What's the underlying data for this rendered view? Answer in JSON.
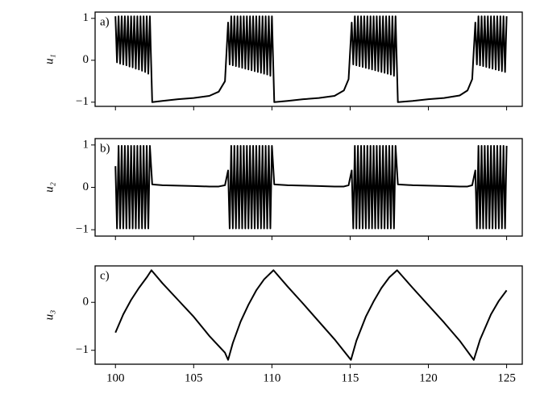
{
  "chart_data": [
    {
      "type": "line",
      "annotation": "a)",
      "ylabel": "u₁",
      "color": "#000000",
      "xlim": [
        98.7,
        126
      ],
      "ylim": [
        -1.1,
        1.15
      ],
      "xticks": [
        100,
        105,
        110,
        115,
        120,
        125
      ],
      "xtick_labels": false,
      "yticks": [
        {
          "value": -1,
          "label": "−1"
        },
        0,
        1
      ],
      "x": [
        100,
        100.1,
        100.2,
        100.3,
        100.4,
        100.5,
        100.6,
        100.7,
        100.8,
        100.9,
        101,
        101.1,
        101.2,
        101.3,
        101.4,
        101.5,
        101.6,
        101.7,
        101.8,
        101.9,
        102,
        102.1,
        102.2,
        102.35,
        103,
        104,
        105,
        106,
        106.6,
        107,
        107.2,
        107.3,
        107.4,
        107.5,
        107.6,
        107.7,
        107.8,
        107.9,
        108,
        108.1,
        108.2,
        108.3,
        108.4,
        108.5,
        108.6,
        108.7,
        108.8,
        108.9,
        109,
        109.1,
        109.2,
        109.3,
        109.4,
        109.5,
        109.6,
        109.7,
        109.8,
        109.9,
        110,
        110.15,
        111,
        112,
        113,
        114,
        114.6,
        114.9,
        115.1,
        115.2,
        115.3,
        115.4,
        115.5,
        115.6,
        115.7,
        115.8,
        115.9,
        116,
        116.1,
        116.2,
        116.3,
        116.4,
        116.5,
        116.6,
        116.7,
        116.8,
        116.9,
        117,
        117.1,
        117.2,
        117.3,
        117.4,
        117.5,
        117.6,
        117.7,
        117.8,
        117.9,
        118.05,
        119,
        120,
        121,
        122,
        122.5,
        122.8,
        123,
        123.1,
        123.2,
        123.3,
        123.4,
        123.5,
        123.6,
        123.7,
        123.8,
        123.9,
        124,
        124.1,
        124.2,
        124.3,
        124.4,
        124.5,
        124.6,
        124.7,
        124.8,
        124.9,
        125
      ],
      "values": [
        1.05,
        -0.05,
        1.05,
        -0.08,
        1.05,
        -0.1,
        1.05,
        -0.12,
        1.05,
        -0.15,
        1.05,
        -0.17,
        1.05,
        -0.2,
        1.05,
        -0.22,
        1.05,
        -0.25,
        1.05,
        -0.28,
        1.05,
        -0.32,
        1.05,
        -1,
        -0.97,
        -0.93,
        -0.9,
        -0.85,
        -0.75,
        -0.5,
        0.9,
        -0.1,
        1.05,
        -0.12,
        1.05,
        -0.14,
        1.05,
        -0.16,
        1.05,
        -0.18,
        1.05,
        -0.2,
        1.05,
        -0.22,
        1.05,
        -0.24,
        1.05,
        -0.26,
        1.05,
        -0.28,
        1.05,
        -0.3,
        1.05,
        -0.32,
        1.05,
        -0.34,
        1.05,
        -0.37,
        1.05,
        -1,
        -0.97,
        -0.93,
        -0.9,
        -0.85,
        -0.72,
        -0.45,
        0.9,
        -0.1,
        1.05,
        -0.12,
        1.05,
        -0.14,
        1.05,
        -0.16,
        1.05,
        -0.18,
        1.05,
        -0.2,
        1.05,
        -0.22,
        1.05,
        -0.24,
        1.05,
        -0.26,
        1.05,
        -0.28,
        1.05,
        -0.3,
        1.05,
        -0.32,
        1.05,
        -0.34,
        1.05,
        -0.37,
        1.05,
        -1,
        -0.97,
        -0.93,
        -0.9,
        -0.84,
        -0.72,
        -0.45,
        0.9,
        -0.1,
        1.05,
        -0.12,
        1.05,
        -0.14,
        1.05,
        -0.16,
        1.05,
        -0.18,
        1.05,
        -0.2,
        1.05,
        -0.22,
        1.05,
        -0.24,
        1.05,
        -0.26,
        1.05,
        -0.28,
        1.05
      ]
    },
    {
      "type": "line",
      "annotation": "b)",
      "ylabel": "u₂",
      "color": "#000000",
      "xlim": [
        98.7,
        126
      ],
      "ylim": [
        -1.15,
        1.15
      ],
      "xticks": [
        100,
        105,
        110,
        115,
        120,
        125
      ],
      "xtick_labels": false,
      "yticks": [
        {
          "value": -1,
          "label": "−1"
        },
        0,
        1
      ],
      "x": [
        100,
        100.1,
        100.2,
        100.3,
        100.4,
        100.5,
        100.6,
        100.7,
        100.8,
        100.9,
        101,
        101.1,
        101.2,
        101.3,
        101.4,
        101.5,
        101.6,
        101.7,
        101.8,
        101.9,
        102,
        102.1,
        102.2,
        102.35,
        103,
        104,
        105,
        106,
        106.6,
        107,
        107.2,
        107.3,
        107.4,
        107.5,
        107.6,
        107.7,
        107.8,
        107.9,
        108,
        108.1,
        108.2,
        108.3,
        108.4,
        108.5,
        108.6,
        108.7,
        108.8,
        108.9,
        109,
        109.1,
        109.2,
        109.3,
        109.4,
        109.5,
        109.6,
        109.7,
        109.8,
        109.9,
        110,
        110.15,
        111,
        112,
        113,
        114,
        114.6,
        114.9,
        115.1,
        115.2,
        115.3,
        115.4,
        115.5,
        115.6,
        115.7,
        115.8,
        115.9,
        116,
        116.1,
        116.2,
        116.3,
        116.4,
        116.5,
        116.6,
        116.7,
        116.8,
        116.9,
        117,
        117.1,
        117.2,
        117.3,
        117.4,
        117.5,
        117.6,
        117.7,
        117.8,
        117.9,
        118.05,
        119,
        120,
        121,
        122,
        122.5,
        122.8,
        123,
        123.1,
        123.2,
        123.3,
        123.4,
        123.5,
        123.6,
        123.7,
        123.8,
        123.9,
        124,
        124.1,
        124.2,
        124.3,
        124.4,
        124.5,
        124.6,
        124.7,
        124.8,
        124.9,
        125
      ],
      "values": [
        0.5,
        -0.97,
        0.98,
        -0.97,
        0.98,
        -0.97,
        0.98,
        -0.97,
        0.98,
        -0.97,
        0.98,
        -0.97,
        0.98,
        -0.97,
        0.98,
        -0.97,
        0.98,
        -0.97,
        0.98,
        -0.97,
        0.98,
        -0.97,
        0.98,
        0.07,
        0.05,
        0.04,
        0.03,
        0.02,
        0.02,
        0.05,
        0.4,
        -0.97,
        0.98,
        -0.97,
        0.98,
        -0.97,
        0.98,
        -0.97,
        0.98,
        -0.97,
        0.98,
        -0.97,
        0.98,
        -0.97,
        0.98,
        -0.97,
        0.98,
        -0.97,
        0.98,
        -0.97,
        0.98,
        -0.97,
        0.98,
        -0.97,
        0.98,
        -0.97,
        0.98,
        -0.97,
        0.98,
        0.07,
        0.05,
        0.04,
        0.03,
        0.02,
        0.02,
        0.05,
        0.4,
        -0.97,
        0.98,
        -0.97,
        0.98,
        -0.97,
        0.98,
        -0.97,
        0.98,
        -0.97,
        0.98,
        -0.97,
        0.98,
        -0.97,
        0.98,
        -0.97,
        0.98,
        -0.97,
        0.98,
        -0.97,
        0.98,
        -0.97,
        0.98,
        -0.97,
        0.98,
        -0.97,
        0.98,
        -0.97,
        0.98,
        0.07,
        0.05,
        0.04,
        0.03,
        0.02,
        0.02,
        0.05,
        0.4,
        -0.97,
        0.98,
        -0.97,
        0.98,
        -0.97,
        0.98,
        -0.97,
        0.98,
        -0.97,
        0.98,
        -0.97,
        0.98,
        -0.97,
        0.98,
        -0.97,
        0.98,
        -0.97,
        0.98,
        -0.97,
        0.98
      ]
    },
    {
      "type": "line",
      "annotation": "c)",
      "ylabel": "u₃",
      "color": "#000000",
      "xlim": [
        98.7,
        126
      ],
      "ylim": [
        -1.29,
        0.76
      ],
      "xticks": [
        100,
        105,
        110,
        115,
        120,
        125
      ],
      "xtick_labels": true,
      "yticks": [
        {
          "value": -1,
          "label": "−1"
        },
        0
      ],
      "x": [
        100,
        100.5,
        101,
        101.5,
        102,
        102.3,
        103,
        104,
        105,
        106,
        107,
        107.2,
        107.5,
        108,
        108.5,
        109,
        109.5,
        110.1,
        111,
        112,
        113,
        114,
        115.05,
        115.4,
        116,
        116.5,
        117,
        117.5,
        118,
        119,
        120,
        121,
        122,
        122.9,
        123.3,
        124,
        124.5,
        125
      ],
      "values": [
        -0.63,
        -0.25,
        0.05,
        0.3,
        0.52,
        0.67,
        0.4,
        0.05,
        -0.3,
        -0.7,
        -1.05,
        -1.2,
        -0.85,
        -0.4,
        -0.05,
        0.25,
        0.48,
        0.67,
        0.33,
        -0.03,
        -0.4,
        -0.77,
        -1.2,
        -0.8,
        -0.3,
        0.02,
        0.3,
        0.52,
        0.67,
        0.3,
        -0.06,
        -0.42,
        -0.8,
        -1.2,
        -0.78,
        -0.25,
        0.03,
        0.25
      ]
    }
  ]
}
